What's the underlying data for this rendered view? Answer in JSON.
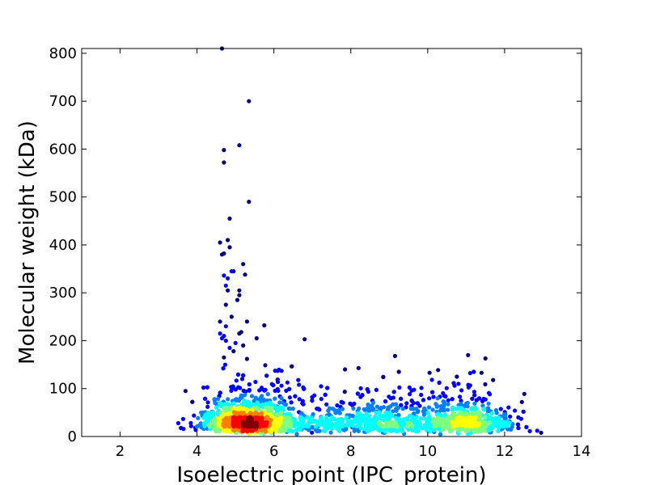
{
  "chart_data": {
    "type": "scatter",
    "style": "density-colored scatter",
    "xlabel": "Isoelectric point (IPC_protein)",
    "ylabel": "Molecular weight (kDa)",
    "xlim": [
      1,
      14
    ],
    "ylim": [
      0,
      810
    ],
    "xticks": [
      2,
      4,
      6,
      8,
      10,
      12,
      14
    ],
    "yticks": [
      0,
      100,
      200,
      300,
      400,
      500,
      600,
      700,
      800
    ],
    "grid": false,
    "colormap": [
      "#00007f",
      "#0000ff",
      "#007fff",
      "#00ffff",
      "#7fff7f",
      "#ffff00",
      "#ff7f00",
      "#ff0000",
      "#7f0000"
    ],
    "outliers": [
      [
        4.65,
        810
      ],
      [
        5.35,
        700
      ],
      [
        5.1,
        608
      ],
      [
        4.7,
        598
      ],
      [
        4.7,
        572
      ],
      [
        5.35,
        490
      ],
      [
        4.85,
        455
      ],
      [
        4.8,
        410
      ],
      [
        4.6,
        405
      ],
      [
        4.85,
        395
      ],
      [
        4.7,
        382
      ],
      [
        4.65,
        380
      ],
      [
        5.2,
        360
      ],
      [
        4.95,
        345
      ],
      [
        4.9,
        345
      ],
      [
        5.25,
        338
      ],
      [
        4.7,
        336
      ],
      [
        4.8,
        330
      ],
      [
        4.75,
        315
      ],
      [
        5.1,
        305
      ],
      [
        4.8,
        305
      ],
      [
        5.1,
        295
      ],
      [
        5.05,
        285
      ],
      [
        4.75,
        275
      ],
      [
        4.9,
        250
      ],
      [
        5.75,
        232
      ],
      [
        4.6,
        240
      ],
      [
        5.3,
        240
      ],
      [
        4.75,
        230
      ],
      [
        5.15,
        218
      ],
      [
        5.1,
        215
      ],
      [
        4.6,
        215
      ],
      [
        4.7,
        210
      ],
      [
        4.65,
        205
      ],
      [
        5.55,
        205
      ],
      [
        6.8,
        203
      ],
      [
        4.75,
        200
      ],
      [
        5.0,
        195
      ],
      [
        5.2,
        190
      ],
      [
        4.85,
        185
      ],
      [
        4.95,
        178
      ],
      [
        9.15,
        168
      ],
      [
        11.05,
        170
      ],
      [
        11.5,
        163
      ],
      [
        4.7,
        165
      ],
      [
        5.3,
        162
      ],
      [
        11.7,
        118
      ],
      [
        10.05,
        133
      ],
      [
        11.4,
        133
      ],
      [
        9.25,
        135
      ],
      [
        3.7,
        95
      ],
      [
        6.1,
        137
      ],
      [
        6.2,
        137
      ],
      [
        7.85,
        140
      ],
      [
        8.2,
        143
      ],
      [
        10.3,
        112
      ],
      [
        10.8,
        110
      ],
      [
        12.45,
        72
      ],
      [
        12.85,
        12
      ],
      [
        12.95,
        8
      ]
    ]
  }
}
